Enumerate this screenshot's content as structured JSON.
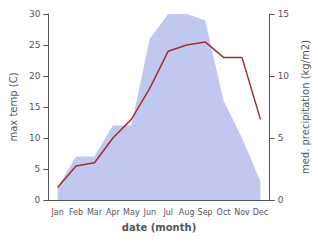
{
  "chart_data": {
    "type": "line",
    "categories": [
      "Jan",
      "Feb",
      "Mar",
      "Apr",
      "May",
      "Jun",
      "Jul",
      "Aug",
      "Sep",
      "Oct",
      "Nov",
      "Dec"
    ],
    "xlabel": "date (month)",
    "ylabel": "max temp (C)",
    "y2label": "med. precipitation (kg/m2)",
    "series": [
      {
        "type": "area",
        "color": "#c0c8f0",
        "axis": "y2",
        "values": [
          1.0,
          3.5,
          3.5,
          6.0,
          6.0,
          13.0,
          15.0,
          15.0,
          14.5,
          8.0,
          5.0,
          1.5
        ]
      },
      {
        "type": "line",
        "color": "#a03030",
        "values": [
          2.0,
          5.5,
          6.0,
          10.0,
          13.0,
          18.0,
          24.0,
          25.0,
          25.5,
          23.0,
          23.0,
          13.0
        ]
      }
    ],
    "ylim": [
      0,
      30
    ],
    "yticks": [
      0,
      5,
      10,
      15,
      20,
      25,
      30
    ],
    "y2lim": [
      0,
      15
    ],
    "y2ticks": [
      0,
      5,
      10,
      15
    ],
    "grid": false
  }
}
